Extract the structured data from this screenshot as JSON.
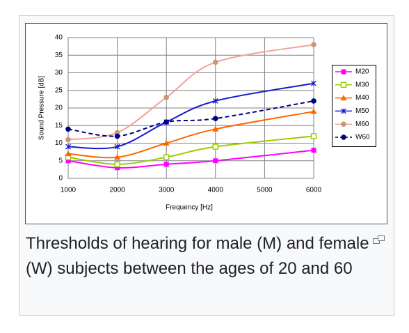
{
  "chart_data": {
    "type": "line",
    "x": [
      1000,
      2000,
      3000,
      4000,
      6000
    ],
    "xlim": [
      1000,
      6000
    ],
    "xticks": [
      1000,
      2000,
      3000,
      4000,
      5000,
      6000
    ],
    "ylim": [
      0,
      40
    ],
    "yticks": [
      0,
      5,
      10,
      15,
      20,
      25,
      30,
      35,
      40
    ],
    "xlabel": "Frequency  [Hz]",
    "ylabel": "Sound Pressure [dB]",
    "grid": true,
    "smooth": true,
    "legend": "right",
    "series": [
      {
        "name": "M20",
        "color": "#ff00ff",
        "marker": "square",
        "values": [
          5,
          3,
          4,
          5,
          8
        ]
      },
      {
        "name": "M30",
        "color": "#99cc00",
        "marker": "square-open",
        "values": [
          6,
          4,
          6,
          9,
          12
        ]
      },
      {
        "name": "M40",
        "color": "#ff6600",
        "marker": "triangle",
        "values": [
          7,
          6,
          10,
          14,
          19
        ]
      },
      {
        "name": "M50",
        "color": "#1a1acc",
        "marker": "star",
        "values": [
          9,
          9,
          16,
          22,
          27
        ]
      },
      {
        "name": "M60",
        "color": "#f4a09a",
        "marker_color": "#c8967a",
        "marker": "circle",
        "values": [
          11,
          13,
          23,
          33,
          38
        ]
      },
      {
        "name": "W60",
        "color": "#000080",
        "marker": "circle",
        "dash": true,
        "values": [
          14,
          12,
          16,
          17,
          22
        ]
      }
    ]
  },
  "caption": "Thresholds of hearing for male (M) and female (W) subjects between the ages of 20 and 60"
}
